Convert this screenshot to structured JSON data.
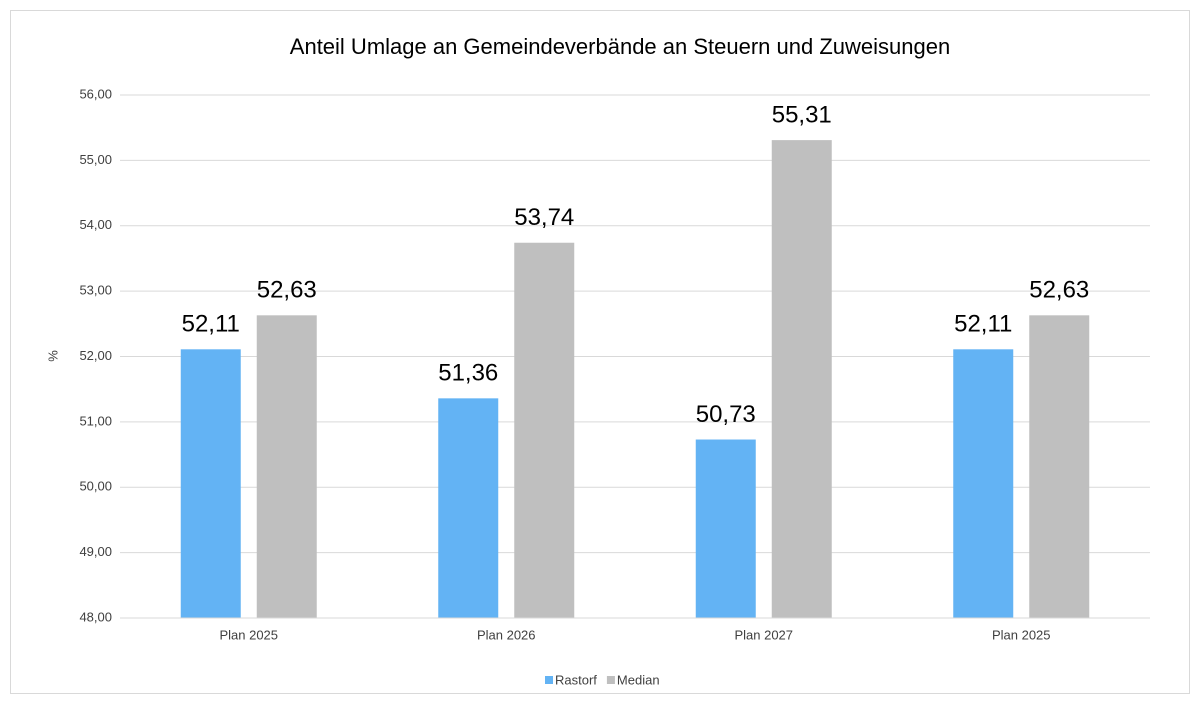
{
  "chart_data": {
    "type": "bar",
    "title": "Anteil Umlage an Gemeindeverbände an Steuern und Zuweisungen",
    "y_label": "%",
    "categories": [
      "Plan 2025",
      "Plan 2026",
      "Plan 2027",
      "Plan 2025"
    ],
    "series": [
      {
        "name": "Rastorf",
        "color": "#63b3f4",
        "values": [
          52.11,
          51.36,
          50.73,
          52.11
        ],
        "value_labels": [
          "52,11",
          "51,36",
          "50,73",
          "52,11"
        ]
      },
      {
        "name": "Median",
        "color": "#bfbfbf",
        "values": [
          52.63,
          53.74,
          55.31,
          52.63
        ],
        "value_labels": [
          "52,63",
          "53,74",
          "55,31",
          "52,63"
        ]
      }
    ],
    "ylim": [
      48,
      56
    ],
    "yticks": [
      {
        "value": 48,
        "label": "48,00"
      },
      {
        "value": 49,
        "label": "49,00"
      },
      {
        "value": 50,
        "label": "50,00"
      },
      {
        "value": 51,
        "label": "51,00"
      },
      {
        "value": 52,
        "label": "52,00"
      },
      {
        "value": 53,
        "label": "53,00"
      },
      {
        "value": 54,
        "label": "54,00"
      },
      {
        "value": 55,
        "label": "55,00"
      },
      {
        "value": 56,
        "label": "56,00"
      }
    ],
    "grid": true,
    "legend": "bottom"
  }
}
